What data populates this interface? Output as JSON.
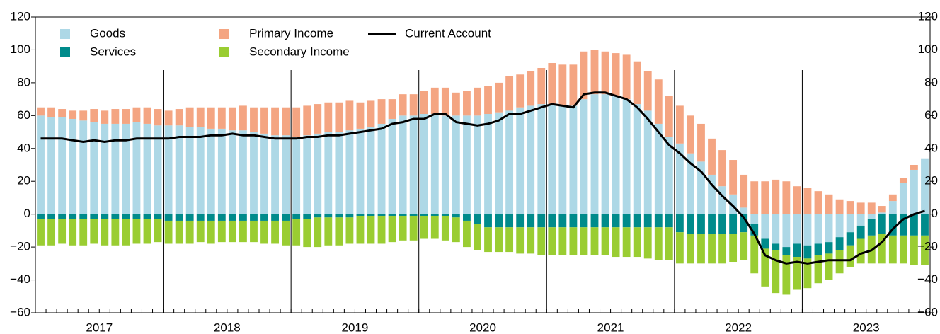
{
  "chart_data": {
    "type": "stacked-bar-line",
    "categories": [
      "2017",
      null,
      null,
      null,
      null,
      null,
      null,
      null,
      null,
      null,
      null,
      null,
      "2018",
      null,
      null,
      null,
      null,
      null,
      null,
      null,
      null,
      null,
      null,
      null,
      "2019",
      null,
      null,
      null,
      null,
      null,
      null,
      null,
      null,
      null,
      null,
      null,
      "2020",
      null,
      null,
      null,
      null,
      null,
      null,
      null,
      null,
      null,
      null,
      null,
      "2021",
      null,
      null,
      null,
      null,
      null,
      null,
      null,
      null,
      null,
      null,
      null,
      "2022",
      null,
      null,
      null,
      null,
      null,
      null,
      null,
      null,
      null,
      null,
      null,
      "2023",
      null,
      null,
      null,
      null,
      null,
      null,
      null,
      null,
      null,
      null,
      null
    ],
    "series": [
      {
        "name": "Goods",
        "color": "#add8e6",
        "values": [
          60,
          59,
          59,
          58,
          57,
          56,
          55,
          55,
          55,
          56,
          55,
          54,
          54,
          54,
          53,
          53,
          52,
          52,
          51,
          51,
          50,
          49,
          48,
          48,
          47,
          48,
          49,
          50,
          50,
          51,
          52,
          53,
          55,
          58,
          60,
          60,
          61,
          61,
          60,
          60,
          60,
          60,
          61,
          62,
          63,
          65,
          66,
          67,
          67,
          66,
          66,
          70,
          73,
          73,
          72,
          70,
          67,
          63,
          55,
          47,
          43,
          37,
          32,
          24,
          17,
          12,
          4,
          -6,
          -15,
          -18,
          -20,
          -18,
          -19,
          -18,
          -17,
          -14,
          -11,
          -7,
          -3,
          1,
          8,
          19,
          27,
          34
        ]
      },
      {
        "name": "Services",
        "color": "#008b8b",
        "values": [
          -3,
          -3,
          -3,
          -3,
          -3,
          -3,
          -3,
          -3,
          -3,
          -3,
          -3,
          -3,
          -4,
          -4,
          -4,
          -4,
          -4,
          -4,
          -4,
          -4,
          -4,
          -4,
          -4,
          -4,
          -3,
          -3,
          -2,
          -2,
          -2,
          -2,
          -1,
          -1,
          -1,
          -1,
          -1,
          -1,
          -1,
          -1,
          -1,
          -2,
          -4,
          -6,
          -8,
          -8,
          -8,
          -8,
          -8,
          -8,
          -8,
          -8,
          -8,
          -8,
          -8,
          -8,
          -8,
          -8,
          -8,
          -8,
          -8,
          -8,
          -11,
          -12,
          -12,
          -12,
          -12,
          -12,
          -11,
          -7,
          -6,
          -4,
          -5,
          -8,
          -8,
          -7,
          -7,
          -8,
          -8,
          -8,
          -10,
          -12,
          -13,
          -13,
          -13,
          -13
        ]
      },
      {
        "name": "Primary Income",
        "color": "#f4a582",
        "values": [
          5,
          6,
          5,
          5,
          6,
          8,
          8,
          9,
          9,
          9,
          10,
          10,
          9,
          10,
          12,
          12,
          13,
          13,
          14,
          15,
          15,
          16,
          17,
          17,
          18,
          18,
          18,
          18,
          18,
          18,
          16,
          16,
          15,
          12,
          13,
          13,
          14,
          16,
          17,
          14,
          15,
          17,
          17,
          18,
          21,
          20,
          21,
          22,
          25,
          25,
          25,
          29,
          27,
          26,
          26,
          27,
          26,
          24,
          27,
          25,
          23,
          23,
          23,
          22,
          22,
          21,
          20,
          20,
          20,
          21,
          20,
          17,
          16,
          14,
          12,
          9,
          8,
          7,
          7,
          4,
          4,
          3,
          3,
          0
        ]
      },
      {
        "name": "Secondary Income",
        "color": "#9acd32",
        "values": [
          -16,
          -16,
          -15,
          -16,
          -16,
          -15,
          -16,
          -16,
          -16,
          -15,
          -15,
          -14,
          -14,
          -14,
          -14,
          -13,
          -14,
          -13,
          -13,
          -13,
          -13,
          -14,
          -14,
          -15,
          -16,
          -17,
          -18,
          -17,
          -17,
          -16,
          -17,
          -17,
          -17,
          -16,
          -15,
          -15,
          -14,
          -14,
          -15,
          -15,
          -16,
          -16,
          -15,
          -15,
          -15,
          -16,
          -16,
          -17,
          -17,
          -17,
          -17,
          -17,
          -17,
          -17,
          -18,
          -18,
          -18,
          -19,
          -20,
          -20,
          -19,
          -18,
          -18,
          -18,
          -18,
          -17,
          -17,
          -23,
          -23,
          -26,
          -24,
          -20,
          -18,
          -17,
          -16,
          -14,
          -13,
          -15,
          -17,
          -18,
          -17,
          -17,
          -18,
          -18
        ]
      },
      {
        "name": "Current Account",
        "type": "line",
        "color": "#000000",
        "values": [
          46,
          46,
          46,
          45,
          44,
          45,
          44,
          45,
          45,
          46,
          46,
          46,
          46,
          47,
          47,
          47,
          48,
          48,
          49,
          48,
          48,
          47,
          46,
          46,
          46,
          47,
          47,
          48,
          48,
          49,
          50,
          51,
          52,
          55,
          56,
          58,
          58,
          61,
          61,
          56,
          55,
          54,
          55,
          57,
          61,
          61,
          63,
          65,
          67,
          66,
          65,
          73,
          74,
          74,
          72,
          70,
          65,
          58,
          50,
          42,
          37,
          31,
          26,
          18,
          11,
          5,
          -2,
          -12,
          -25,
          -28,
          -30,
          -29,
          -30,
          -29,
          -28,
          -28,
          -28,
          -24,
          -22,
          -17,
          -9,
          -3,
          0,
          2
        ]
      }
    ],
    "ylim": [
      -60,
      120
    ],
    "yticks": [
      {
        "value": -60,
        "label": "−60"
      },
      {
        "value": -40,
        "label": "−40"
      },
      {
        "value": -20,
        "label": "−20"
      },
      0,
      20,
      40,
      60,
      80,
      100,
      120
    ],
    "y2lim": [
      -60,
      120
    ],
    "y2ticks": [
      {
        "value": -60,
        "label": "−60"
      },
      {
        "value": -40,
        "label": "−40"
      },
      {
        "value": -20,
        "label": "−20"
      },
      0,
      20,
      40,
      60,
      80,
      100,
      120
    ],
    "legend": "upper left"
  }
}
